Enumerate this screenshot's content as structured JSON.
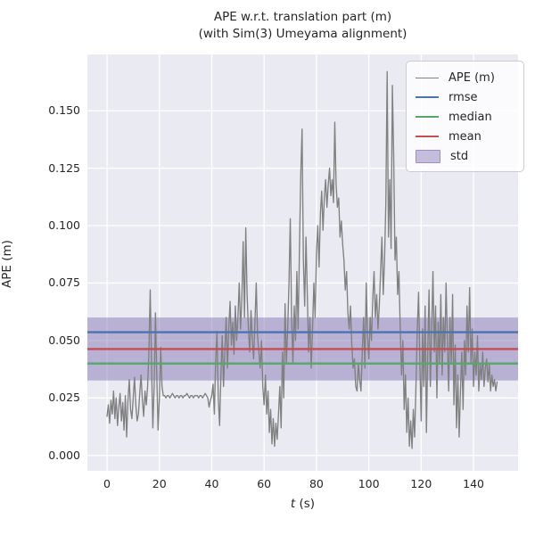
{
  "title": "APE w.r.t. translation part (m)",
  "subtitle": "(with Sim(3) Umeyama alignment)",
  "x_axis": {
    "label_italic": "t",
    "label_rest": " (s)",
    "ticks": [
      0,
      20,
      40,
      60,
      80,
      100,
      120,
      140
    ]
  },
  "y_axis": {
    "label": "APE (m)",
    "ticks": [
      0.0,
      0.025,
      0.05,
      0.075,
      0.1,
      0.125,
      0.15
    ],
    "tick_labels": [
      "0.000",
      "0.025",
      "0.050",
      "0.075",
      "0.100",
      "0.125",
      "0.150"
    ]
  },
  "legend": {
    "items": [
      {
        "label": "APE (m)",
        "kind": "line-thin",
        "color": "#808080"
      },
      {
        "label": "rmse",
        "kind": "line",
        "color": "#4C72B0"
      },
      {
        "label": "median",
        "kind": "line",
        "color": "#55A868"
      },
      {
        "label": "mean",
        "kind": "line",
        "color": "#C44E52"
      },
      {
        "label": "std",
        "kind": "patch",
        "color": "#8172B2"
      }
    ]
  },
  "colors": {
    "axes_bg": "#eaeaf2",
    "grid": "#ffffff",
    "ape": "#808080",
    "rmse": "#4C72B0",
    "median": "#55A868",
    "mean": "#C44E52",
    "std_fill": "rgba(129,114,178,0.48)",
    "text": "#262626"
  },
  "chart_data": {
    "type": "line",
    "title": "APE w.r.t. translation part (m)",
    "subtitle": "(with Sim(3) Umeyama alignment)",
    "xlabel": "t (s)",
    "ylabel": "APE (m)",
    "xlim": [
      -7.5,
      157.0
    ],
    "ylim": [
      -0.0067,
      0.1745
    ],
    "grid": true,
    "legend_position": "upper right",
    "stats": {
      "rmse": 0.0536,
      "mean": 0.0463,
      "median": 0.04,
      "std": 0.0137
    },
    "series_name": "APE (m)",
    "t_start": 0.0,
    "t_step": 0.5,
    "values": [
      0.017,
      0.022,
      0.014,
      0.024,
      0.018,
      0.028,
      0.016,
      0.025,
      0.013,
      0.021,
      0.027,
      0.015,
      0.023,
      0.011,
      0.026,
      0.008,
      0.024,
      0.033,
      0.02,
      0.016,
      0.025,
      0.034,
      0.022,
      0.015,
      0.018,
      0.027,
      0.035,
      0.024,
      0.017,
      0.028,
      0.022,
      0.03,
      0.045,
      0.072,
      0.04,
      0.012,
      0.03,
      0.062,
      0.035,
      0.011,
      0.025,
      0.047,
      0.03,
      0.026,
      0.026,
      0.025,
      0.026,
      0.026,
      0.025,
      0.026,
      0.027,
      0.026,
      0.025,
      0.026,
      0.026,
      0.025,
      0.026,
      0.026,
      0.025,
      0.026,
      0.026,
      0.027,
      0.026,
      0.025,
      0.026,
      0.026,
      0.025,
      0.026,
      0.026,
      0.026,
      0.025,
      0.026,
      0.026,
      0.025,
      0.026,
      0.027,
      0.026,
      0.025,
      0.021,
      0.024,
      0.026,
      0.031,
      0.018,
      0.041,
      0.054,
      0.025,
      0.013,
      0.035,
      0.052,
      0.03,
      0.045,
      0.06,
      0.038,
      0.055,
      0.067,
      0.048,
      0.058,
      0.044,
      0.065,
      0.05,
      0.06,
      0.075,
      0.055,
      0.068,
      0.093,
      0.06,
      0.099,
      0.07,
      0.055,
      0.045,
      0.063,
      0.05,
      0.042,
      0.058,
      0.075,
      0.052,
      0.045,
      0.038,
      0.05,
      0.03,
      0.022,
      0.035,
      0.018,
      0.028,
      0.01,
      0.02,
      0.005,
      0.016,
      0.004,
      0.014,
      0.007,
      0.018,
      0.03,
      0.012,
      0.045,
      0.025,
      0.066,
      0.04,
      0.055,
      0.075,
      0.103,
      0.06,
      0.04,
      0.065,
      0.05,
      0.08,
      0.055,
      0.09,
      0.122,
      0.142,
      0.085,
      0.065,
      0.095,
      0.07,
      0.045,
      0.06,
      0.038,
      0.055,
      0.075,
      0.06,
      0.088,
      0.1,
      0.082,
      0.105,
      0.115,
      0.098,
      0.112,
      0.12,
      0.108,
      0.118,
      0.125,
      0.113,
      0.12,
      0.11,
      0.145,
      0.118,
      0.108,
      0.112,
      0.095,
      0.102,
      0.092,
      0.085,
      0.072,
      0.08,
      0.062,
      0.055,
      0.065,
      0.048,
      0.038,
      0.042,
      0.03,
      0.028,
      0.04,
      0.033,
      0.028,
      0.045,
      0.06,
      0.038,
      0.075,
      0.052,
      0.042,
      0.06,
      0.05,
      0.068,
      0.08,
      0.06,
      0.07,
      0.055,
      0.065,
      0.08,
      0.095,
      0.07,
      0.085,
      0.11,
      0.167,
      0.095,
      0.12,
      0.09,
      0.161,
      0.13,
      0.085,
      0.095,
      0.07,
      0.08,
      0.055,
      0.035,
      0.05,
      0.02,
      0.035,
      0.01,
      0.025,
      0.004,
      0.015,
      0.003,
      0.02,
      0.008,
      0.03,
      0.055,
      0.071,
      0.04,
      0.015,
      0.055,
      0.03,
      0.065,
      0.01,
      0.045,
      0.072,
      0.03,
      0.055,
      0.08,
      0.045,
      0.065,
      0.025,
      0.058,
      0.04,
      0.07,
      0.035,
      0.06,
      0.045,
      0.075,
      0.05,
      0.028,
      0.06,
      0.04,
      0.07,
      0.022,
      0.048,
      0.012,
      0.035,
      0.008,
      0.028,
      0.045,
      0.02,
      0.05,
      0.035,
      0.065,
      0.045,
      0.073,
      0.04,
      0.055,
      0.03,
      0.045,
      0.035,
      0.052,
      0.028,
      0.04,
      0.033,
      0.045,
      0.03,
      0.038,
      0.042,
      0.032,
      0.04,
      0.028,
      0.035,
      0.03,
      0.033,
      0.028,
      0.032
    ]
  }
}
